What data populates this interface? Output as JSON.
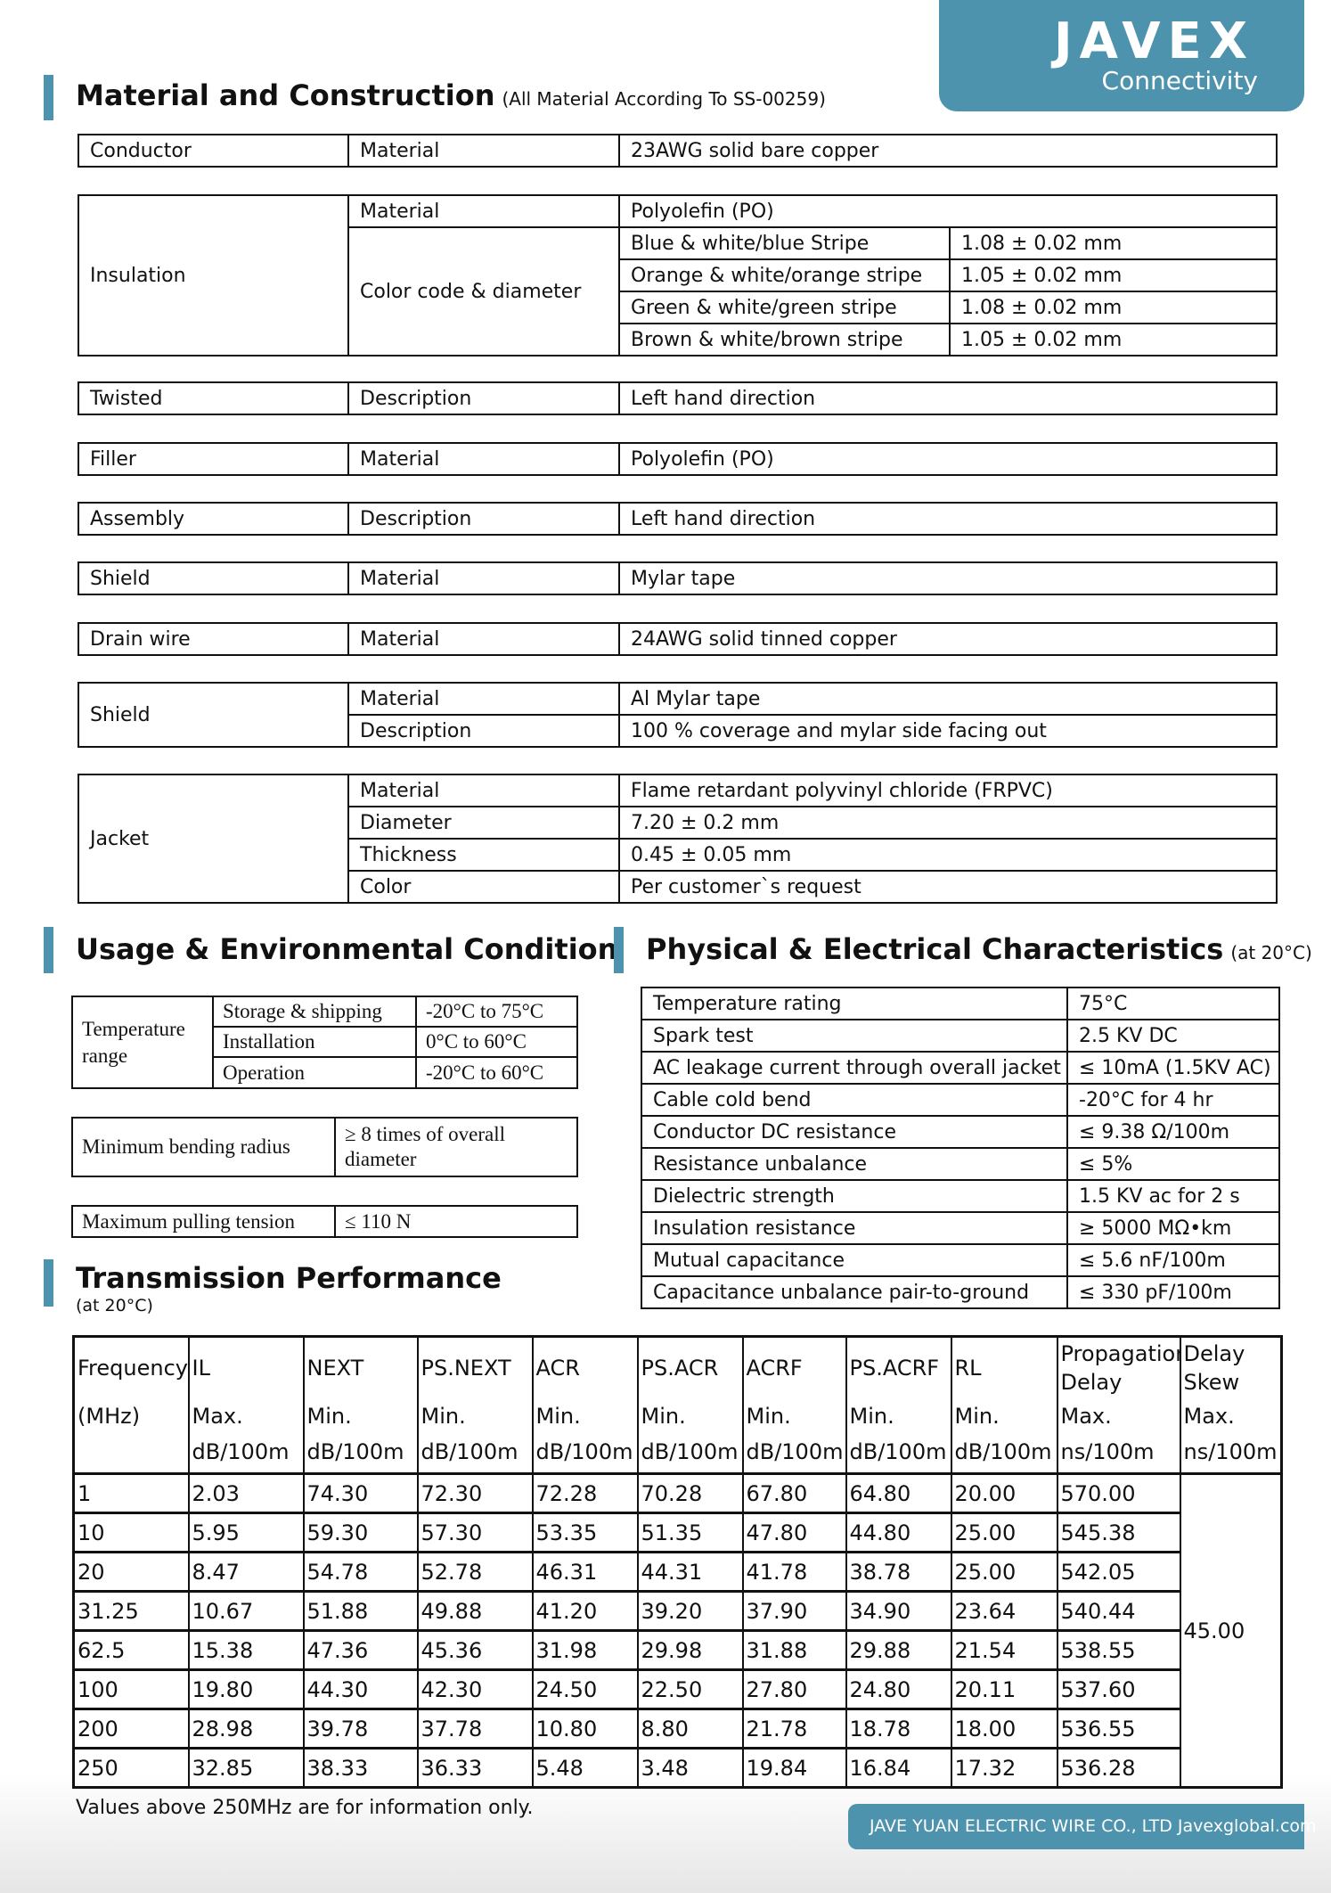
{
  "logo": {
    "text": "JAVEX",
    "sub": "Connectivity"
  },
  "colors": {
    "accent": "#4e93ad"
  },
  "material": {
    "title": "Material and Construction",
    "note": "(All Material According To SS-00259)",
    "conductor": [
      "Conductor",
      "Material",
      "23AWG solid bare copper"
    ],
    "insulation": {
      "label": "Insulation",
      "material_label": "Material",
      "material": "Polyolefin (PO)",
      "color_label": "Color code & diameter",
      "colors": [
        [
          "Blue & white/blue Stripe",
          "1.08 ± 0.02 mm"
        ],
        [
          "Orange & white/orange stripe",
          "1.05 ± 0.02 mm"
        ],
        [
          "Green & white/green stripe",
          "1.08 ± 0.02 mm"
        ],
        [
          "Brown & white/brown stripe",
          "1.05 ± 0.02 mm"
        ]
      ]
    },
    "twisted": [
      "Twisted",
      "Description",
      "Left hand direction"
    ],
    "filler": [
      "Filler",
      "Material",
      "Polyolefin (PO)"
    ],
    "assembly": [
      "Assembly",
      "Description",
      "Left hand direction"
    ],
    "shield1": [
      "Shield",
      "Material",
      "Mylar tape"
    ],
    "drain": [
      "Drain wire",
      "Material",
      "24AWG solid tinned copper"
    ],
    "shield2": {
      "label": "Shield",
      "rows": [
        [
          "Material",
          "Al Mylar tape"
        ],
        [
          "Description",
          "100 % coverage and mylar side facing out"
        ]
      ]
    },
    "jacket": {
      "label": "Jacket",
      "rows": [
        [
          "Material",
          "Flame retardant polyvinyl chloride (FRPVC)"
        ],
        [
          "Diameter",
          "7.20 ± 0.2 mm"
        ],
        [
          "Thickness",
          "0.45 ± 0.05 mm"
        ],
        [
          "Color",
          "Per customer`s request"
        ]
      ]
    }
  },
  "usage": {
    "title": "Usage & Environmental Condition",
    "temp_label": "Temperature range",
    "temp_rows": [
      [
        "Storage & shipping",
        "-20°C to 75°C"
      ],
      [
        "Installation",
        "0°C to 60°C"
      ],
      [
        "Operation",
        "-20°C to 60°C"
      ]
    ],
    "bend": [
      "Minimum bending radius",
      "≥ 8 times of overall diameter"
    ],
    "pull": [
      "Maximum pulling tension",
      "≤ 110 N"
    ]
  },
  "physical": {
    "title": "Physical & Electrical Characteristics",
    "note": "(at 20°C)",
    "rows": [
      [
        "Temperature rating",
        "75°C"
      ],
      [
        "Spark test",
        "2.5 KV DC"
      ],
      [
        "AC leakage current through overall jacket",
        "≤ 10mA (1.5KV AC)"
      ],
      [
        "Cable cold bend",
        "-20°C for 4 hr"
      ],
      [
        "Conductor DC resistance",
        "≤ 9.38 Ω/100m"
      ],
      [
        "Resistance unbalance",
        "≤ 5%"
      ],
      [
        "Dielectric strength",
        "1.5 KV ac for 2 s"
      ],
      [
        "Insulation resistance",
        "≥ 5000 MΩ•km"
      ],
      [
        "Mutual capacitance",
        "≤ 5.6 nF/100m"
      ],
      [
        "Capacitance unbalance pair-to-ground",
        "≤ 330 pF/100m"
      ]
    ]
  },
  "transmission": {
    "title": "Transmission Performance",
    "note": "(at 20°C)",
    "headers": [
      "Frequency",
      "IL",
      "NEXT",
      "PS.NEXT",
      "ACR",
      "PS.ACR",
      "ACRF",
      "PS.ACRF",
      "RL",
      "Propagation Delay",
      "Delay Skew"
    ],
    "units": [
      [
        "(MHz)",
        ""
      ],
      [
        "Max.",
        "dB/100m"
      ],
      [
        "Min.",
        "dB/100m"
      ],
      [
        "Min.",
        "dB/100m"
      ],
      [
        "Min.",
        "dB/100m"
      ],
      [
        "Min.",
        "dB/100m"
      ],
      [
        "Min.",
        "dB/100m"
      ],
      [
        "Min.",
        "dB/100m"
      ],
      [
        "Min.",
        "dB/100m"
      ],
      [
        "Max.",
        "ns/100m"
      ],
      [
        "Max.",
        "ns/100m"
      ]
    ],
    "rows": [
      [
        "1",
        "2.03",
        "74.30",
        "72.30",
        "72.28",
        "70.28",
        "67.80",
        "64.80",
        "20.00",
        "570.00"
      ],
      [
        "10",
        "5.95",
        "59.30",
        "57.30",
        "53.35",
        "51.35",
        "47.80",
        "44.80",
        "25.00",
        "545.38"
      ],
      [
        "20",
        "8.47",
        "54.78",
        "52.78",
        "46.31",
        "44.31",
        "41.78",
        "38.78",
        "25.00",
        "542.05"
      ],
      [
        "31.25",
        "10.67",
        "51.88",
        "49.88",
        "41.20",
        "39.20",
        "37.90",
        "34.90",
        "23.64",
        "540.44"
      ],
      [
        "62.5",
        "15.38",
        "47.36",
        "45.36",
        "31.98",
        "29.98",
        "31.88",
        "29.88",
        "21.54",
        "538.55"
      ],
      [
        "100",
        "19.80",
        "44.30",
        "42.30",
        "24.50",
        "22.50",
        "27.80",
        "24.80",
        "20.11",
        "537.60"
      ],
      [
        "200",
        "28.98",
        "39.78",
        "37.78",
        "10.80",
        "8.80",
        "21.78",
        "18.78",
        "18.00",
        "536.55"
      ],
      [
        "250",
        "32.85",
        "38.33",
        "36.33",
        "5.48",
        "3.48",
        "19.84",
        "16.84",
        "17.32",
        "536.28"
      ]
    ],
    "skew": "45.00",
    "footnote": "Values above 250MHz are for information only."
  },
  "footer": "JAVE YUAN ELECTRIC WIRE CO., LTD  Javexglobal.com"
}
